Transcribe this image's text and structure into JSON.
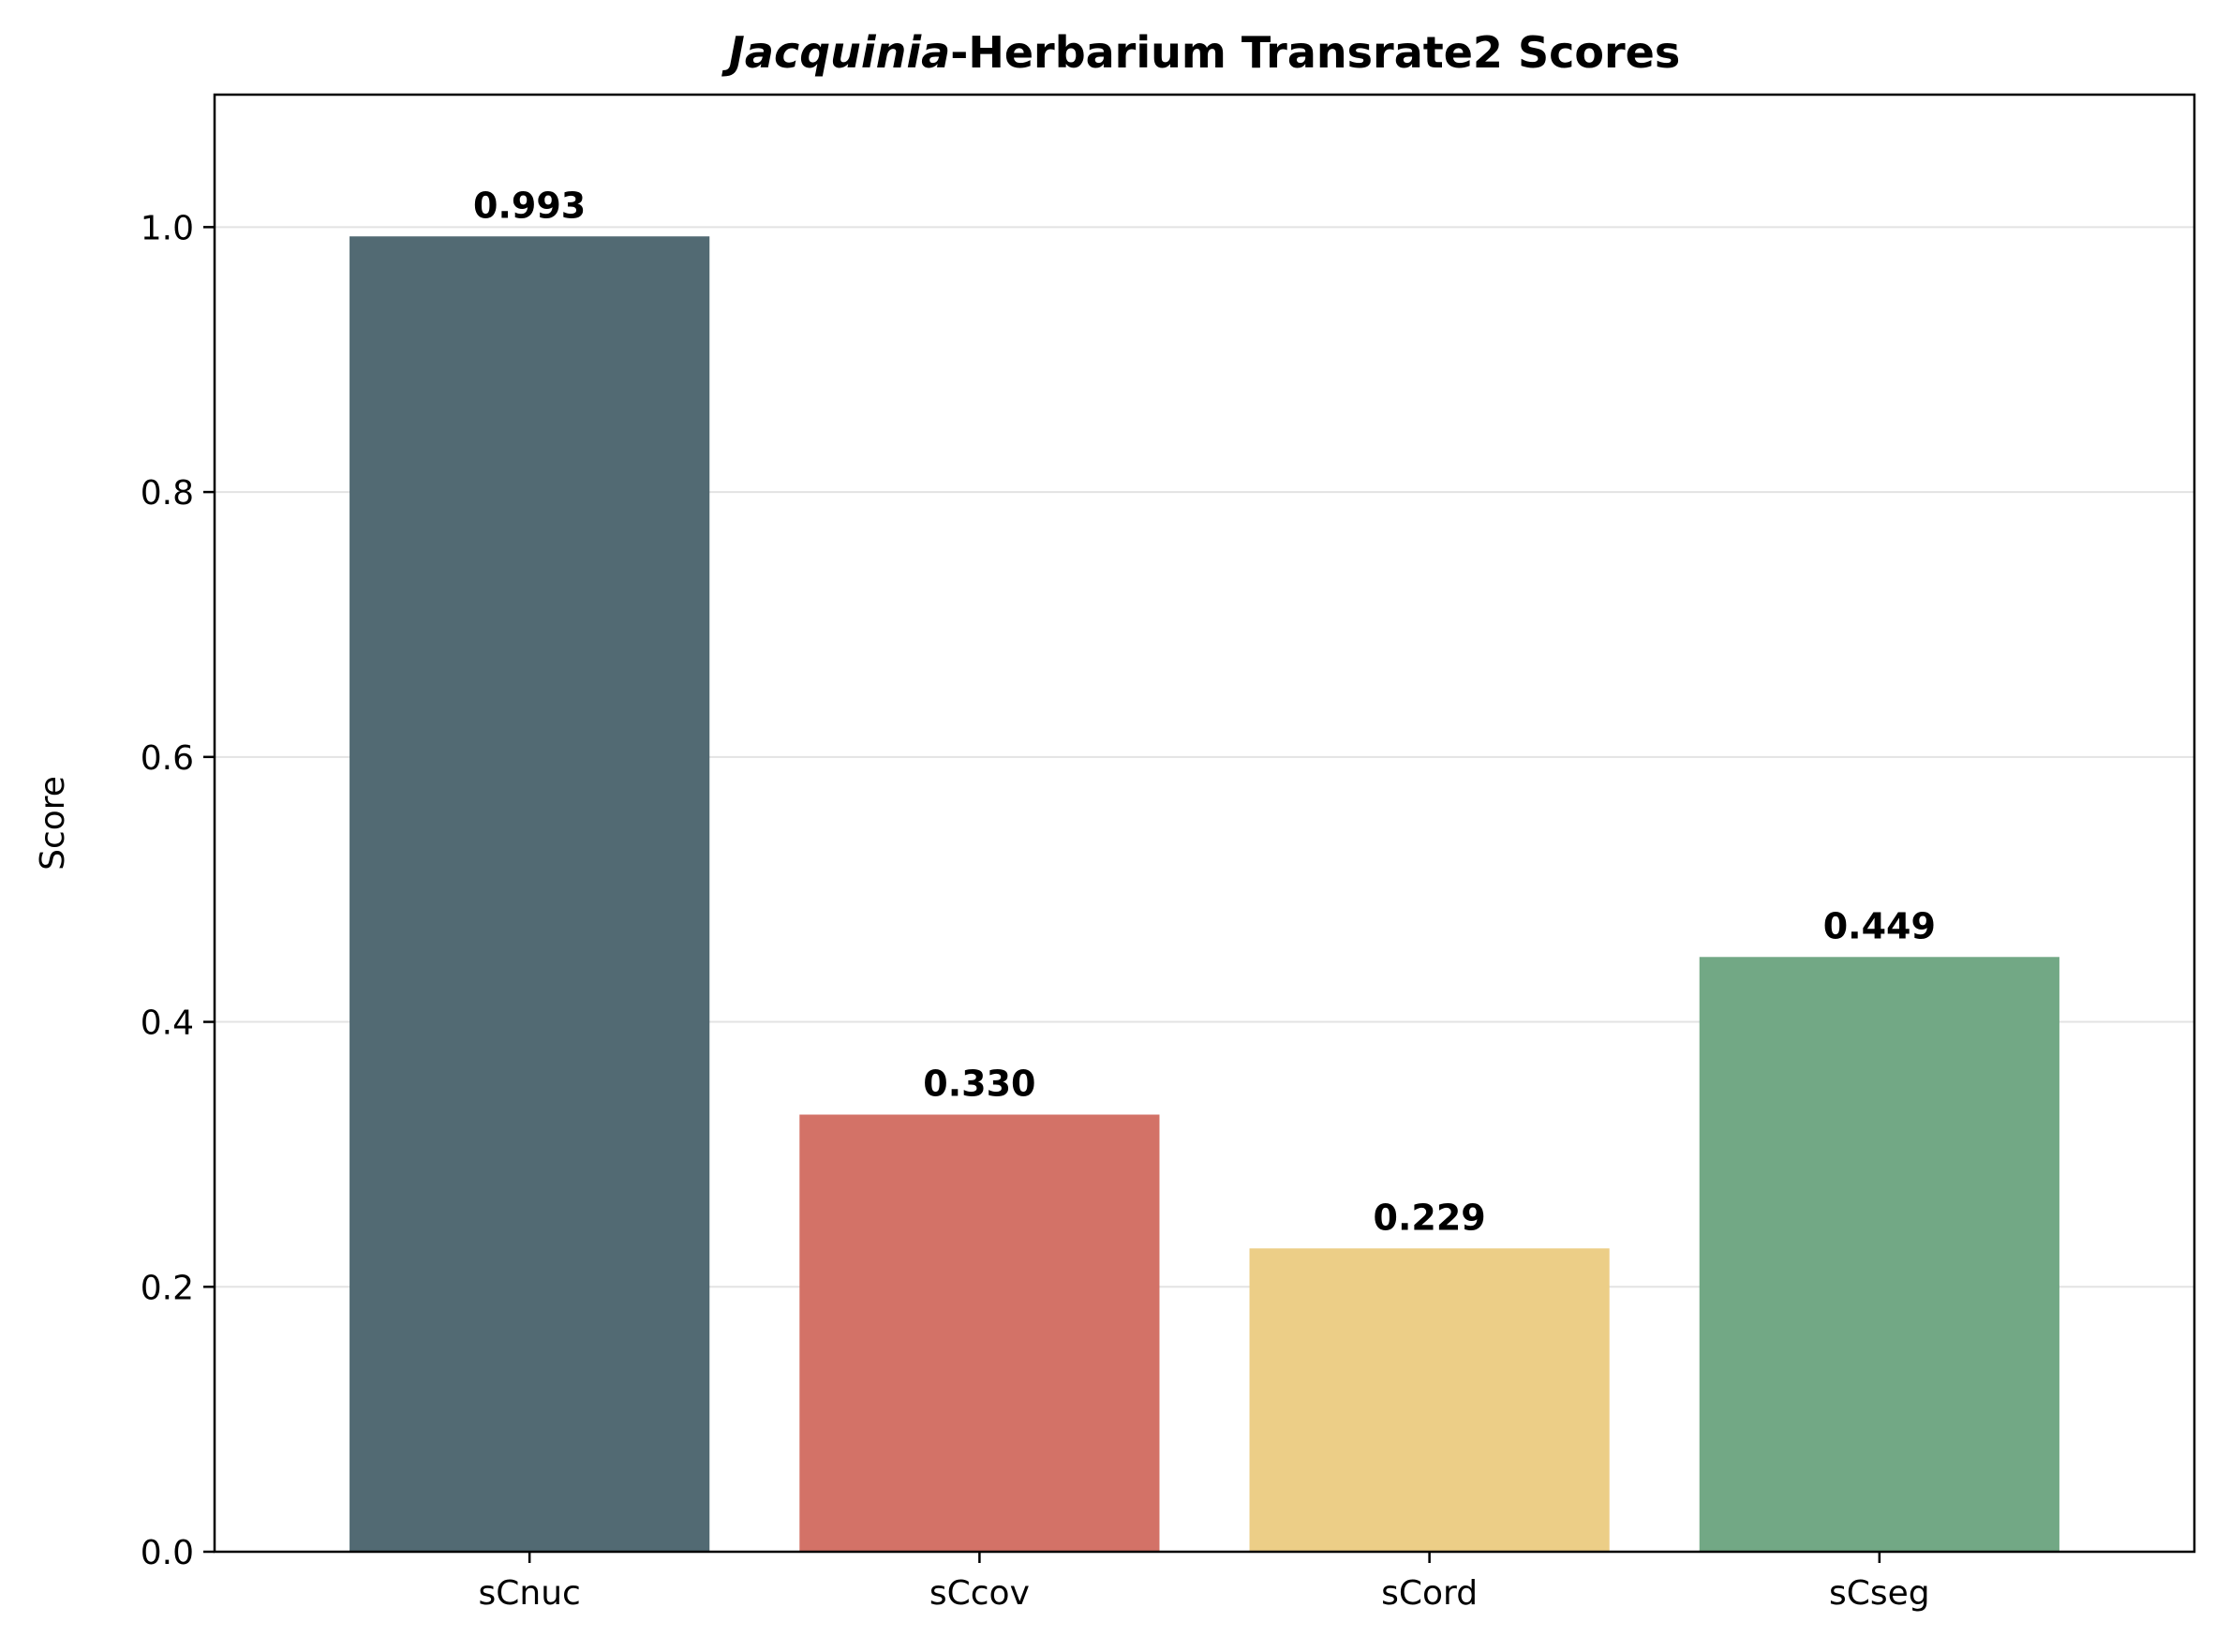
{
  "chart_data": {
    "type": "bar",
    "title_italic": "Jacquinia",
    "title_rest": "-Herbarium Transrate2 Scores",
    "xlabel": "",
    "ylabel": "Score",
    "categories": [
      "sCnuc",
      "sCcov",
      "sCord",
      "sCseg"
    ],
    "values": [
      0.993,
      0.33,
      0.229,
      0.449
    ],
    "value_labels": [
      "0.993",
      "0.330",
      "0.229",
      "0.449"
    ],
    "colors": [
      "#526a73",
      "#d37267",
      "#ecce87",
      "#72a885"
    ],
    "ylim": [
      0,
      1.1
    ],
    "yticks": [
      0.0,
      0.2,
      0.4,
      0.6,
      0.8,
      1.0
    ],
    "ytick_labels": [
      "0.0",
      "0.2",
      "0.4",
      "0.6",
      "0.8",
      "1.0"
    ],
    "grid": true,
    "grid_axis": "y",
    "legend": false
  }
}
